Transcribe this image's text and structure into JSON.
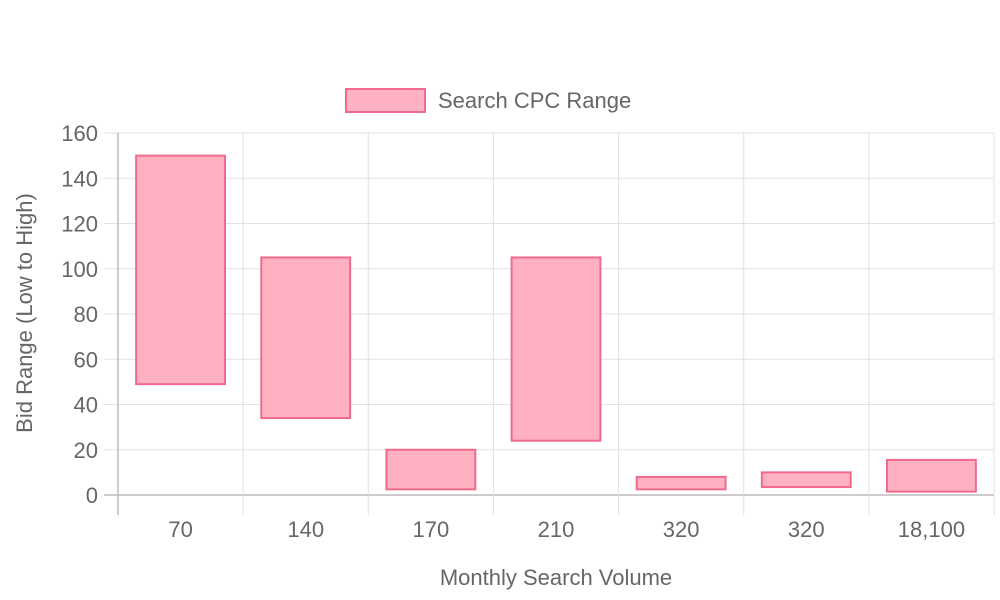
{
  "chart_data": {
    "type": "bar",
    "title": "",
    "xlabel": "Monthly Search Volume",
    "ylabel": "Bid Range (Low to High)",
    "categories": [
      "70",
      "140",
      "170",
      "210",
      "320",
      "320",
      "18,100"
    ],
    "series": [
      {
        "name": "Search CPC Range",
        "ranges": [
          [
            49,
            150
          ],
          [
            34,
            105
          ],
          [
            2.5,
            20
          ],
          [
            24,
            105
          ],
          [
            2.5,
            8
          ],
          [
            3.5,
            10
          ],
          [
            1.5,
            15.5
          ]
        ]
      }
    ],
    "ylim": [
      0,
      160
    ],
    "yticks": [
      0,
      20,
      40,
      60,
      80,
      100,
      120,
      140,
      160
    ],
    "grid": true,
    "legend_position": "top-center",
    "colors": {
      "fill": "#ffb1c1",
      "stroke": "#f06a8e",
      "grid": "#e1e1e1",
      "axis": "#bbbbbb",
      "text": "#666666"
    }
  }
}
